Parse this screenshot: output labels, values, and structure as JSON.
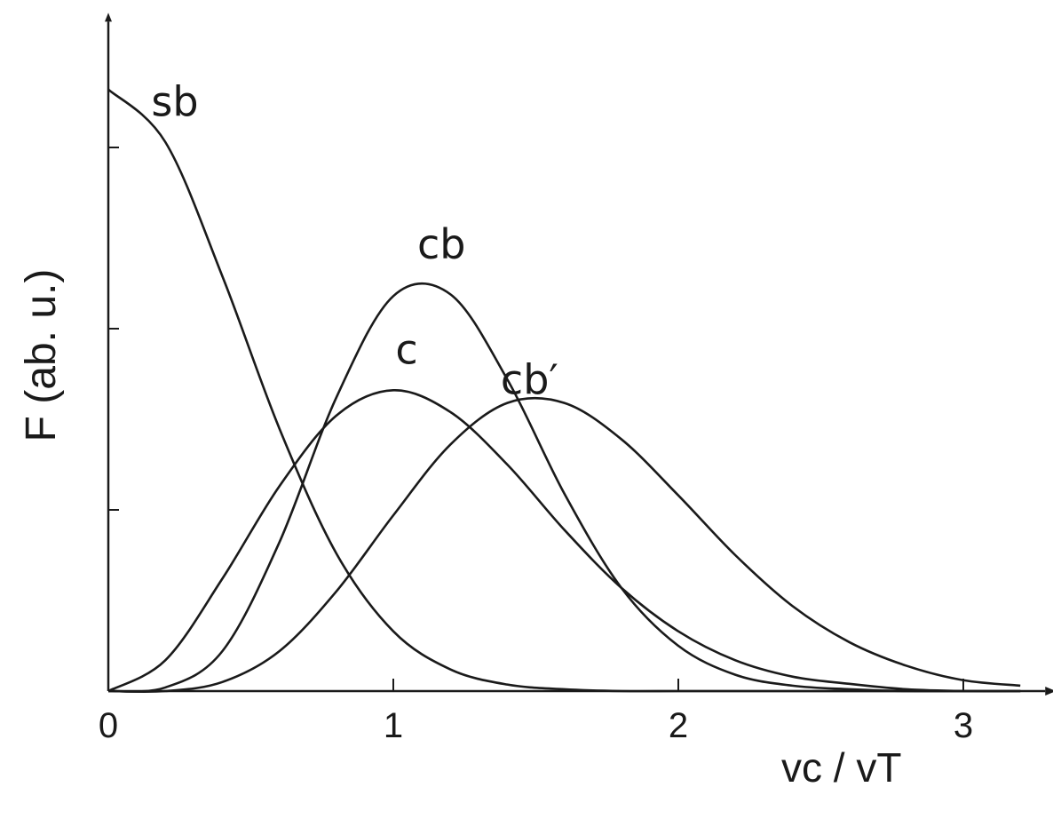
{
  "chart_data": {
    "type": "line",
    "x_label": "vc / vT",
    "y_label": "F (ab. u.)",
    "x": [
      0,
      0.2,
      0.4,
      0.6,
      0.8,
      1.0,
      1.2,
      1.4,
      1.6,
      1.8,
      2.0,
      2.2,
      2.4,
      2.6,
      2.8,
      3.0,
      3.2
    ],
    "series": [
      {
        "name": "sb",
        "color": "#1a1a1a",
        "values": [
          3.32,
          3.03,
          2.29,
          1.45,
          0.76,
          0.33,
          0.12,
          0.036,
          0.01,
          0,
          0,
          0,
          0,
          0,
          0,
          0,
          0
        ]
      },
      {
        "name": "cb",
        "color": "#1a1a1a",
        "values": [
          0,
          0.02,
          0.22,
          0.82,
          1.62,
          2.18,
          2.19,
          1.72,
          1.09,
          0.57,
          0.25,
          0.09,
          0.03,
          0.01,
          0,
          0,
          0
        ]
      },
      {
        "name": "c",
        "color": "#1a1a1a",
        "values": [
          0,
          0.17,
          0.62,
          1.13,
          1.52,
          1.66,
          1.54,
          1.25,
          0.89,
          0.57,
          0.33,
          0.17,
          0.08,
          0.04,
          0.01,
          0,
          0
        ]
      },
      {
        "name": "cb′",
        "color": "#1a1a1a",
        "values": [
          0,
          0,
          0.05,
          0.22,
          0.55,
          0.97,
          1.36,
          1.59,
          1.59,
          1.39,
          1.08,
          0.75,
          0.47,
          0.27,
          0.14,
          0.06,
          0.03
        ]
      }
    ],
    "xlim": [
      0,
      3.25
    ],
    "ylim": [
      0,
      3.67
    ],
    "xticks": [
      0,
      1,
      2,
      3
    ],
    "yticks": [
      0,
      1,
      2,
      3
    ],
    "grid": false
  }
}
